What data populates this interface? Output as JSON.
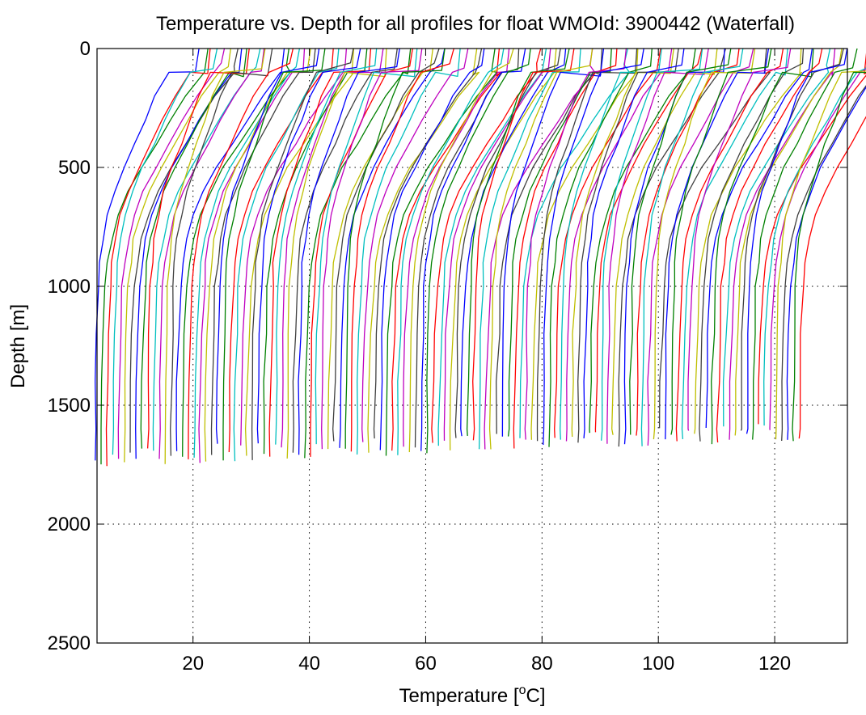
{
  "chart_data": {
    "type": "line",
    "title": "Temperature vs. Depth for all profiles for float WMOId: 3900442 (Waterfall)",
    "xlabel_prefix": "Temperature [",
    "xlabel_sup": "o",
    "xlabel_suffix": "C]",
    "ylabel": "Depth [m]",
    "xlim": [
      3.5,
      132.5
    ],
    "ylim": [
      0,
      2500
    ],
    "y_reversed": true,
    "grid": true,
    "xticks": [
      20,
      40,
      60,
      80,
      100,
      120
    ],
    "yticks": [
      0,
      500,
      1000,
      1500,
      2000,
      2500
    ],
    "profile_count": 122,
    "palette": [
      "#0000ff",
      "#008000",
      "#ff0000",
      "#00bfbf",
      "#bf00bf",
      "#bfbf00",
      "#404040"
    ],
    "waterfall_offset_per_profile": 1.0,
    "profile_template": {
      "depth": [
        0,
        60,
        100,
        200,
        300,
        400,
        500,
        600,
        700,
        800,
        900,
        1000,
        1200,
        1400,
        1600
      ],
      "temperature": [
        21.0,
        20.5,
        17.0,
        14.5,
        12.5,
        10.5,
        8.5,
        6.8,
        5.5,
        4.6,
        4.1,
        3.8,
        3.5,
        3.3,
        3.2
      ]
    }
  }
}
